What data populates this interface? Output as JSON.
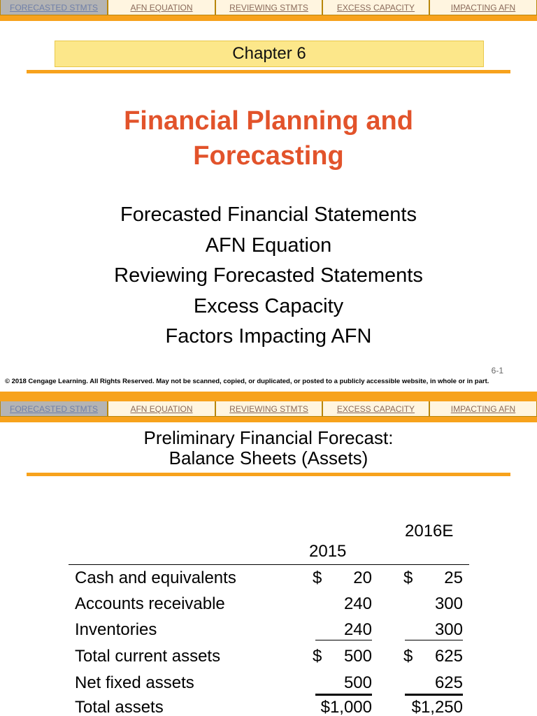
{
  "nav": {
    "tabs": [
      {
        "label": "FORECASTED STMTS"
      },
      {
        "label": "AFN EQUATION"
      },
      {
        "label": "REVIEWING STMTS"
      },
      {
        "label": "EXCESS CAPACITY"
      },
      {
        "label": "IMPACTING AFN"
      }
    ]
  },
  "slide1": {
    "chapter": "Chapter 6",
    "title_line1": "Financial Planning and",
    "title_line2": "Forecasting",
    "topics": [
      "Forecasted Financial Statements",
      "AFN Equation",
      "Reviewing Forecasted Statements",
      "Excess Capacity",
      "Factors Impacting AFN"
    ],
    "page_number": "6-1",
    "copyright": "© 2018 Cengage Learning. All Rights Reserved. May not be scanned, copied, or duplicated, or posted to a publicly accessible website, in whole or in part."
  },
  "slide2": {
    "heading_line1": "Preliminary Financial Forecast:",
    "heading_line2": "Balance Sheets (Assets)",
    "columns": {
      "col1": "2015",
      "col2": "2016E"
    },
    "rows": [
      {
        "label": "Cash and equivalents",
        "sym1": "$",
        "v1": "20",
        "sym2": "$",
        "v2": "25"
      },
      {
        "label": "Accounts receivable",
        "sym1": "",
        "v1": "240",
        "sym2": "",
        "v2": "300"
      },
      {
        "label": "Inventories",
        "sym1": "",
        "v1": "240",
        "sym2": "",
        "v2": "300"
      },
      {
        "label": "Total current assets",
        "sym1": "$",
        "v1": "500",
        "sym2": "$",
        "v2": "625"
      },
      {
        "label": "Net fixed assets",
        "sym1": "",
        "v1": "500",
        "sym2": "",
        "v2": "625"
      },
      {
        "label": "Total assets",
        "sym1": "",
        "v1": "$1,000",
        "sym2": "",
        "v2": "$1,250"
      }
    ]
  },
  "colors": {
    "accent_orange": "#f7a21c",
    "title_red": "#e2532b",
    "chapter_yellow": "#fce78a"
  }
}
